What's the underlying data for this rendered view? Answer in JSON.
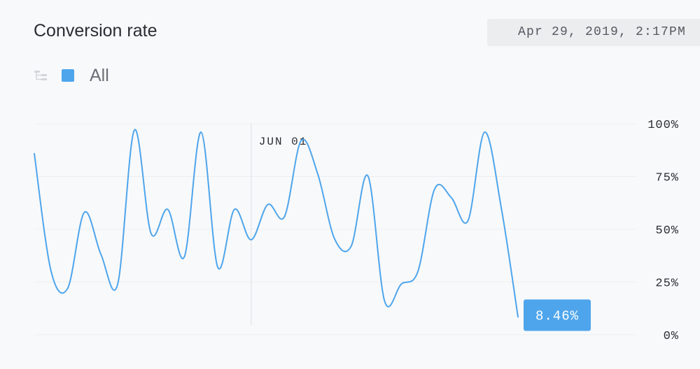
{
  "header": {
    "title": "Conversion rate",
    "timestamp": "Apr 29, 2019, 2:17PM"
  },
  "colors": {
    "series": "#4ea5ec",
    "gridline": "#eceef0",
    "axis_text": "#2a2d33",
    "timestamp_bg": "#ebedef"
  },
  "legend": {
    "icon": "tree-icon",
    "items": [
      {
        "label": "All",
        "color": "#4ea5ec"
      }
    ]
  },
  "chart_data": {
    "type": "line",
    "xlabel": "",
    "ylabel": "",
    "ylim": [
      0,
      100
    ],
    "y_ticks": [
      {
        "value": 100,
        "label": "100%"
      },
      {
        "value": 75,
        "label": "75%"
      },
      {
        "value": 50,
        "label": "50%"
      },
      {
        "value": 25,
        "label": "25%"
      },
      {
        "value": 0,
        "label": "0%"
      }
    ],
    "y_grid": true,
    "y_axis_position": "right",
    "x_marker": {
      "label": "JUN 01",
      "index": 13
    },
    "last_value_label": "8.46%",
    "series": [
      {
        "values": [
          85.8,
          30.3,
          22,
          58,
          38,
          24,
          97,
          48,
          59.4,
          37,
          96,
          32,
          59.4,
          45,
          61.7,
          56,
          92,
          76,
          45.5,
          42,
          75.3,
          16,
          24,
          30,
          69,
          65,
          54,
          96,
          60,
          8.46
        ]
      }
    ]
  }
}
